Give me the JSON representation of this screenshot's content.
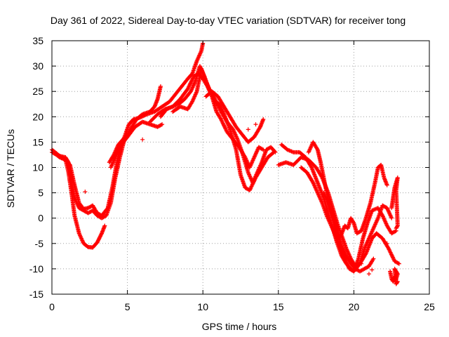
{
  "chart_data": {
    "type": "scatter",
    "title": "Day 361 of 2022, Sidereal Day-to-day VTEC variation (SDTVAR) for receiver tong",
    "xlabel": "GPS time / hours",
    "ylabel": "SDTVAR / TECUs",
    "xlim": [
      0,
      25
    ],
    "ylim": [
      -15,
      35
    ],
    "xticks": [
      0,
      5,
      10,
      15,
      20,
      25
    ],
    "yticks": [
      -15,
      -10,
      -5,
      0,
      5,
      10,
      15,
      20,
      25,
      30,
      35
    ],
    "grid": true,
    "marker": "+",
    "color": "#ff0000",
    "series": [
      {
        "name": "trace-1",
        "points": [
          [
            0.0,
            13.5
          ],
          [
            0.3,
            12.8
          ],
          [
            0.6,
            12.0
          ],
          [
            0.9,
            11.5
          ],
          [
            1.1,
            9.0
          ],
          [
            1.3,
            5.0
          ],
          [
            1.5,
            0.5
          ],
          [
            1.8,
            -3.0
          ],
          [
            2.1,
            -5.0
          ],
          [
            2.4,
            -5.7
          ],
          [
            2.7,
            -5.8
          ],
          [
            3.0,
            -4.8
          ],
          [
            3.3,
            -3.0
          ],
          [
            3.5,
            -1.5
          ]
        ]
      },
      {
        "name": "trace-2",
        "points": [
          [
            0.0,
            13.0
          ],
          [
            0.3,
            12.5
          ],
          [
            0.6,
            12.2
          ],
          [
            0.9,
            12.0
          ],
          [
            1.1,
            11.0
          ],
          [
            1.3,
            7.0
          ],
          [
            1.5,
            4.0
          ],
          [
            1.8,
            2.0
          ],
          [
            2.1,
            1.5
          ],
          [
            2.4,
            1.0
          ],
          [
            2.7,
            1.5
          ],
          [
            3.0,
            0.5
          ],
          [
            3.3,
            0.0
          ],
          [
            3.6,
            0.5
          ],
          [
            3.9,
            3.0
          ],
          [
            4.2,
            8.0
          ],
          [
            4.5,
            12.0
          ],
          [
            4.8,
            15.5
          ],
          [
            5.0,
            16.5
          ]
        ]
      },
      {
        "name": "trace-3",
        "points": [
          [
            0.1,
            13.0
          ],
          [
            0.5,
            12.0
          ],
          [
            0.9,
            11.5
          ],
          [
            1.2,
            10.5
          ],
          [
            1.5,
            6.5
          ],
          [
            1.8,
            3.0
          ],
          [
            2.1,
            1.8
          ],
          [
            2.4,
            2.0
          ],
          [
            2.7,
            2.5
          ],
          [
            3.0,
            1.0
          ],
          [
            3.3,
            0.5
          ],
          [
            3.7,
            2.0
          ],
          [
            4.0,
            6.0
          ],
          [
            4.3,
            11.0
          ],
          [
            4.6,
            14.5
          ],
          [
            5.0,
            16.0
          ],
          [
            5.5,
            18.0
          ],
          [
            6.0,
            19.0
          ],
          [
            6.5,
            18.5
          ],
          [
            7.0,
            18.0
          ],
          [
            7.3,
            18.5
          ]
        ]
      },
      {
        "name": "trace-4",
        "points": [
          [
            3.8,
            11.0
          ],
          [
            4.1,
            12.5
          ],
          [
            4.4,
            14.5
          ],
          [
            4.7,
            15.5
          ],
          [
            5.0,
            16.5
          ],
          [
            5.3,
            18.0
          ],
          [
            5.6,
            19.5
          ],
          [
            6.0,
            20.5
          ],
          [
            6.5,
            21.0
          ],
          [
            6.8,
            22.0
          ],
          [
            7.0,
            23.5
          ],
          [
            7.2,
            26.0
          ]
        ]
      },
      {
        "name": "trace-5",
        "points": [
          [
            3.9,
            10.0
          ],
          [
            4.2,
            12.0
          ],
          [
            4.5,
            14.0
          ],
          [
            4.8,
            16.0
          ],
          [
            5.1,
            18.5
          ],
          [
            5.4,
            19.5
          ],
          [
            5.8,
            19.8
          ],
          [
            6.3,
            20.5
          ],
          [
            6.8,
            21.0
          ],
          [
            7.3,
            22.0
          ],
          [
            7.8,
            23.0
          ],
          [
            8.2,
            24.5
          ],
          [
            8.6,
            26.0
          ],
          [
            9.0,
            27.5
          ],
          [
            9.3,
            28.5
          ],
          [
            9.6,
            31.0
          ],
          [
            9.9,
            33.0
          ],
          [
            10.0,
            34.5
          ]
        ]
      },
      {
        "name": "trace-6",
        "points": [
          [
            6.5,
            19.0
          ],
          [
            7.0,
            20.5
          ],
          [
            7.5,
            21.5
          ],
          [
            8.0,
            22.0
          ],
          [
            8.5,
            23.5
          ],
          [
            9.0,
            25.5
          ],
          [
            9.4,
            28.0
          ],
          [
            9.7,
            28.5
          ],
          [
            10.0,
            27.5
          ],
          [
            10.3,
            26.0
          ],
          [
            10.6,
            24.0
          ],
          [
            10.9,
            21.0
          ],
          [
            11.2,
            19.5
          ],
          [
            11.6,
            17.0
          ],
          [
            12.0,
            15.5
          ],
          [
            12.4,
            14.0
          ],
          [
            12.8,
            12.0
          ],
          [
            13.1,
            10.0
          ],
          [
            13.4,
            12.0
          ],
          [
            13.7,
            14.0
          ],
          [
            14.0,
            13.5
          ]
        ]
      },
      {
        "name": "trace-7",
        "points": [
          [
            7.2,
            20.0
          ],
          [
            7.6,
            21.5
          ],
          [
            8.0,
            22.0
          ],
          [
            8.4,
            22.5
          ],
          [
            8.8,
            23.5
          ],
          [
            9.2,
            25.0
          ],
          [
            9.5,
            27.0
          ],
          [
            9.8,
            30.0
          ],
          [
            10.1,
            28.0
          ],
          [
            10.4,
            25.5
          ],
          [
            10.8,
            23.5
          ],
          [
            11.2,
            21.0
          ],
          [
            11.6,
            19.0
          ],
          [
            12.0,
            17.5
          ],
          [
            12.3,
            15.5
          ],
          [
            12.6,
            13.0
          ],
          [
            13.0,
            9.0
          ],
          [
            13.3,
            7.0
          ],
          [
            13.6,
            9.0
          ],
          [
            13.9,
            11.0
          ],
          [
            14.2,
            13.5
          ],
          [
            14.5,
            14.0
          ],
          [
            14.8,
            13.0
          ]
        ]
      },
      {
        "name": "trace-8",
        "points": [
          [
            8.0,
            21.0
          ],
          [
            8.5,
            22.0
          ],
          [
            9.0,
            21.5
          ],
          [
            9.3,
            23.0
          ],
          [
            9.6,
            25.0
          ],
          [
            9.9,
            29.5
          ],
          [
            10.2,
            27.0
          ],
          [
            10.5,
            25.0
          ],
          [
            10.8,
            23.0
          ],
          [
            11.1,
            22.5
          ],
          [
            11.4,
            20.5
          ],
          [
            11.8,
            17.5
          ],
          [
            12.2,
            13.5
          ],
          [
            12.5,
            8.5
          ],
          [
            12.8,
            6.0
          ],
          [
            13.1,
            5.5
          ],
          [
            13.5,
            8.0
          ],
          [
            13.9,
            10.0
          ],
          [
            14.3,
            12.0
          ],
          [
            14.7,
            13.0
          ]
        ]
      },
      {
        "name": "trace-9",
        "points": [
          [
            10.2,
            24.0
          ],
          [
            10.6,
            25.0
          ],
          [
            11.0,
            24.0
          ],
          [
            11.4,
            22.0
          ],
          [
            11.8,
            20.0
          ],
          [
            12.2,
            18.0
          ],
          [
            12.6,
            16.5
          ],
          [
            13.0,
            15.0
          ],
          [
            13.4,
            16.0
          ],
          [
            13.8,
            18.0
          ],
          [
            14.0,
            19.5
          ]
        ]
      },
      {
        "name": "trace-10",
        "points": [
          [
            15.0,
            10.5
          ],
          [
            15.5,
            11.0
          ],
          [
            16.0,
            10.5
          ],
          [
            16.5,
            12.0
          ],
          [
            17.0,
            11.5
          ],
          [
            17.5,
            10.0
          ],
          [
            17.9,
            8.0
          ],
          [
            18.3,
            5.0
          ],
          [
            18.6,
            2.0
          ],
          [
            18.9,
            -1.0
          ],
          [
            19.2,
            -3.5
          ],
          [
            19.5,
            -6.0
          ],
          [
            19.8,
            -8.0
          ],
          [
            20.1,
            -9.5
          ],
          [
            20.4,
            -9.0
          ],
          [
            20.8,
            -7.0
          ],
          [
            21.2,
            -4.0
          ],
          [
            21.5,
            -3.0
          ],
          [
            21.9,
            -4.0
          ],
          [
            22.3,
            -6.0
          ],
          [
            22.7,
            -8.5
          ],
          [
            23.0,
            -9.0
          ]
        ]
      },
      {
        "name": "trace-11",
        "points": [
          [
            15.2,
            14.5
          ],
          [
            15.6,
            13.5
          ],
          [
            16.0,
            13.0
          ],
          [
            16.4,
            13.0
          ],
          [
            16.8,
            12.0
          ],
          [
            17.2,
            10.0
          ],
          [
            17.6,
            7.0
          ],
          [
            18.0,
            4.0
          ],
          [
            18.3,
            1.0
          ],
          [
            18.6,
            -2.0
          ],
          [
            18.9,
            -5.0
          ],
          [
            19.2,
            -7.5
          ],
          [
            19.5,
            -9.0
          ],
          [
            19.8,
            -10.0
          ],
          [
            20.0,
            -10.5
          ],
          [
            20.3,
            -8.0
          ],
          [
            20.6,
            -4.0
          ],
          [
            20.9,
            -1.0
          ],
          [
            21.2,
            1.5
          ],
          [
            21.6,
            2.0
          ],
          [
            21.9,
            0.5
          ],
          [
            22.2,
            -1.5
          ],
          [
            22.5,
            -3.0
          ],
          [
            22.8,
            -2.5
          ]
        ]
      },
      {
        "name": "trace-12",
        "points": [
          [
            16.5,
            10.0
          ],
          [
            16.9,
            9.0
          ],
          [
            17.3,
            7.0
          ],
          [
            17.6,
            5.0
          ],
          [
            17.9,
            3.0
          ],
          [
            18.2,
            0.5
          ],
          [
            18.5,
            -1.5
          ],
          [
            18.8,
            -3.5
          ],
          [
            19.1,
            -6.0
          ],
          [
            19.4,
            -8.0
          ],
          [
            19.7,
            -10.0
          ],
          [
            20.0,
            -10.5
          ],
          [
            20.4,
            -9.0
          ],
          [
            20.7,
            -6.0
          ],
          [
            21.0,
            -4.0
          ],
          [
            21.3,
            -2.0
          ],
          [
            21.6,
            0.0
          ],
          [
            21.9,
            2.5
          ],
          [
            22.2,
            2.0
          ],
          [
            22.5,
            0.0
          ]
        ]
      },
      {
        "name": "trace-13",
        "points": [
          [
            17.0,
            13.0
          ],
          [
            17.3,
            15.0
          ],
          [
            17.6,
            13.5
          ],
          [
            17.8,
            11.0
          ],
          [
            18.0,
            8.0
          ],
          [
            18.2,
            5.0
          ],
          [
            18.4,
            2.0
          ],
          [
            18.6,
            0.0
          ],
          [
            18.8,
            -2.0
          ],
          [
            19.0,
            -4.0
          ],
          [
            19.2,
            -3.0
          ],
          [
            19.4,
            -1.5
          ],
          [
            19.6,
            -2.0
          ],
          [
            19.8,
            0.0
          ],
          [
            20.0,
            -1.0
          ],
          [
            20.2,
            -3.0
          ],
          [
            20.5,
            -2.5
          ],
          [
            20.8,
            0.0
          ],
          [
            21.1,
            3.0
          ],
          [
            21.4,
            7.0
          ],
          [
            21.6,
            10.0
          ],
          [
            21.8,
            10.5
          ],
          [
            22.0,
            8.0
          ],
          [
            22.2,
            6.5
          ]
        ]
      },
      {
        "name": "trace-14",
        "points": [
          [
            18.0,
            5.0
          ],
          [
            18.3,
            3.0
          ],
          [
            18.6,
            0.5
          ],
          [
            18.9,
            -2.5
          ],
          [
            19.2,
            -5.5
          ],
          [
            19.5,
            -7.5
          ],
          [
            19.8,
            -9.0
          ],
          [
            20.1,
            -10.0
          ],
          [
            20.4,
            -10.5
          ],
          [
            20.7,
            -10.0
          ],
          [
            21.0,
            -9.5
          ],
          [
            21.3,
            -8.0
          ]
        ]
      },
      {
        "name": "trace-15",
        "points": [
          [
            22.4,
            -10.5
          ],
          [
            22.5,
            -12.0
          ],
          [
            22.6,
            -12.5
          ],
          [
            22.7,
            -11.5
          ],
          [
            22.8,
            -12.0
          ],
          [
            22.9,
            -11.0
          ],
          [
            22.7,
            -10.0
          ],
          [
            22.8,
            -13.0
          ],
          [
            22.9,
            -12.5
          ]
        ]
      },
      {
        "name": "trace-16",
        "points": [
          [
            22.5,
            2.0
          ],
          [
            22.6,
            4.0
          ],
          [
            22.7,
            6.0
          ],
          [
            22.8,
            7.0
          ],
          [
            22.9,
            8.0
          ],
          [
            22.8,
            5.5
          ],
          [
            22.9,
            -1.5
          ],
          [
            22.8,
            -2.0
          ]
        ]
      },
      {
        "name": "scatter-outliers",
        "points": [
          [
            2.2,
            5.2
          ],
          [
            6.0,
            15.5
          ],
          [
            21.2,
            -10.2
          ],
          [
            21.0,
            -11.0
          ],
          [
            20.5,
            -9.0
          ],
          [
            22.2,
            -5.0
          ],
          [
            13.0,
            17.5
          ],
          [
            13.5,
            18.5
          ]
        ]
      }
    ]
  }
}
